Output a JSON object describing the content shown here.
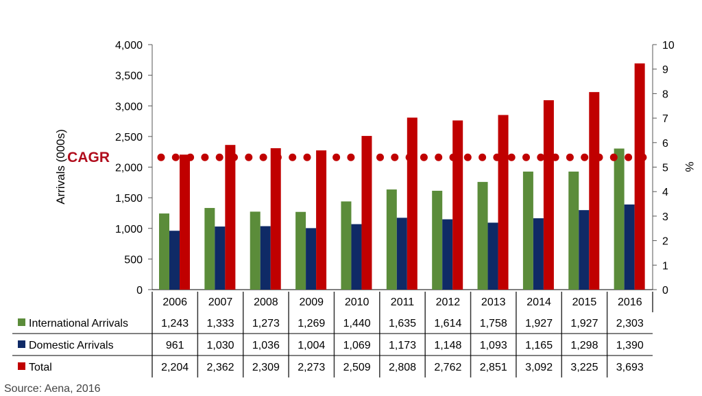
{
  "chart_data": {
    "type": "bar",
    "categories": [
      "2006",
      "2007",
      "2008",
      "2009",
      "2010",
      "2011",
      "2012",
      "2013",
      "2014",
      "2015",
      "2016"
    ],
    "series": [
      {
        "name": "International Arrivals",
        "color": "#5B8C3A",
        "values": [
          1243,
          1333,
          1273,
          1269,
          1440,
          1635,
          1614,
          1758,
          1927,
          1927,
          2303
        ],
        "labels": [
          "1,243",
          "1,333",
          "1,273",
          "1,269",
          "1,440",
          "1,635",
          "1,614",
          "1,758",
          "1,927",
          "1,927",
          "2,303"
        ]
      },
      {
        "name": "Domestic Arrivals",
        "color": "#0F2A66",
        "values": [
          961,
          1030,
          1036,
          1004,
          1069,
          1173,
          1148,
          1093,
          1165,
          1298,
          1390
        ],
        "labels": [
          "961",
          "1,030",
          "1,036",
          "1,004",
          "1,069",
          "1,173",
          "1,148",
          "1,093",
          "1,165",
          "1,298",
          "1,390"
        ]
      },
      {
        "name": "Total",
        "color": "#C00000",
        "values": [
          2204,
          2362,
          2309,
          2273,
          2509,
          2808,
          2762,
          2851,
          3092,
          3225,
          3693
        ],
        "labels": [
          "2,204",
          "2,362",
          "2,309",
          "2,273",
          "2,509",
          "2,808",
          "2,762",
          "2,851",
          "3,092",
          "3,225",
          "3,693"
        ]
      }
    ],
    "ylabel": "Arrivals (000s)",
    "ylim": [
      0,
      4000
    ],
    "yticks": [
      "0",
      "500",
      "1,000",
      "1,500",
      "2,000",
      "2,500",
      "3,000",
      "3,500",
      "4,000"
    ],
    "y2label": "%",
    "y2lim": [
      0,
      10
    ],
    "y2ticks": [
      "0",
      "1",
      "2",
      "3",
      "4",
      "5",
      "6",
      "7",
      "8",
      "9",
      "10"
    ],
    "cagr": {
      "label": "CAGR",
      "value": 5.4,
      "color": "#C00000"
    },
    "grid": false,
    "legend": "data-table"
  },
  "source": "Source: Aena, 2016"
}
